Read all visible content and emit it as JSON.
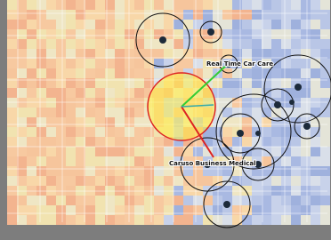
{
  "labels": {
    "place_1": "Real Time Car Care",
    "place_2": "Caruso Business Medical"
  }
}
